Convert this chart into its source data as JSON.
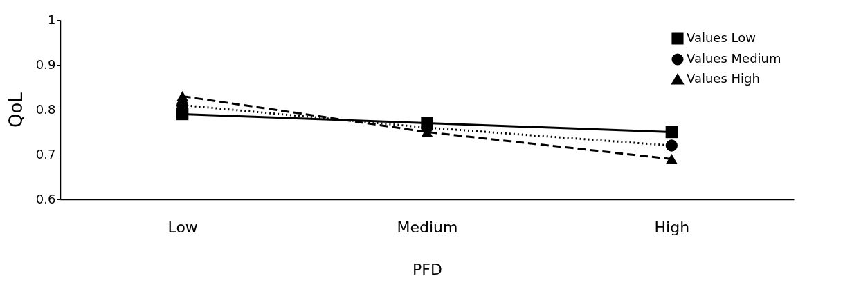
{
  "chart_data": {
    "type": "line",
    "xlabel": "PFD",
    "ylabel": "QoL",
    "categories": [
      "Low",
      "Medium",
      "High"
    ],
    "series": [
      {
        "name": "Values Low",
        "color": "#000000",
        "values": [
          0.79,
          0.77,
          0.75
        ],
        "marker": "square",
        "line_style": "solid"
      },
      {
        "name": "Values Medium",
        "color": "#000000",
        "values": [
          0.81,
          0.76,
          0.72
        ],
        "marker": "circle",
        "line_style": "dotted"
      },
      {
        "name": "Values High",
        "color": "#000000",
        "values": [
          0.83,
          0.75,
          0.69
        ],
        "marker": "triangle",
        "line_style": "dashed"
      }
    ],
    "ylim": [
      0.6,
      1
    ],
    "yticks": [
      0.6,
      0.7,
      0.8,
      0.9,
      1
    ],
    "grid": false,
    "legend": "top right"
  }
}
